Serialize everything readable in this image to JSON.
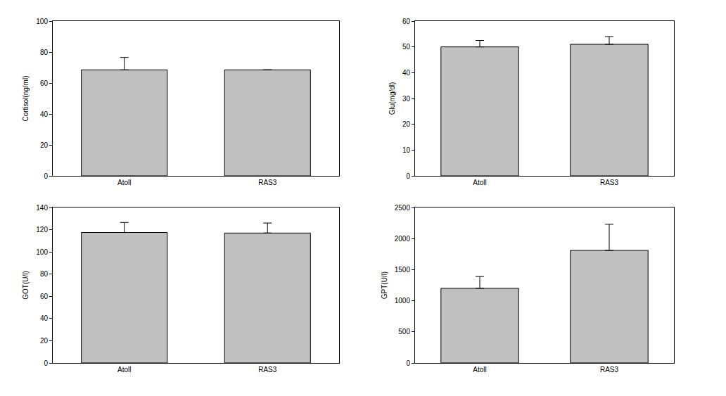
{
  "chart_data": [
    {
      "type": "bar",
      "categories": [
        "Atoll",
        "RAS3"
      ],
      "values": [
        68.5,
        68.5
      ],
      "errors": [
        8,
        0
      ],
      "y_label": "Cortisol(ng/ml)",
      "color": "#c0c0c0",
      "ylim": [
        0,
        100
      ],
      "yticks": [
        0,
        20,
        40,
        60,
        80,
        100
      ],
      "grid": false
    },
    {
      "type": "bar",
      "categories": [
        "Atoll",
        "RAS3"
      ],
      "values": [
        50,
        51
      ],
      "errors": [
        2.5,
        3
      ],
      "y_label": "Glu(mg/dl)",
      "color": "#c0c0c0",
      "ylim": [
        0,
        60
      ],
      "yticks": [
        0,
        10,
        20,
        30,
        40,
        50,
        60
      ],
      "grid": false
    },
    {
      "type": "bar",
      "categories": [
        "Atoll",
        "RAS3"
      ],
      "values": [
        117.5,
        117
      ],
      "errors": [
        9,
        9
      ],
      "y_label": "GOT(U/l)",
      "color": "#c0c0c0",
      "ylim": [
        0,
        140
      ],
      "yticks": [
        0,
        20,
        40,
        60,
        80,
        100,
        120,
        140
      ],
      "grid": false
    },
    {
      "type": "bar",
      "categories": [
        "Atoll",
        "RAS3"
      ],
      "values": [
        1200,
        1810
      ],
      "errors": [
        190,
        420
      ],
      "y_label": "GPT(U/l)",
      "color": "#c0c0c0",
      "ylim": [
        0,
        2500
      ],
      "yticks": [
        0,
        500,
        1000,
        1500,
        2000,
        2500
      ],
      "grid": false
    }
  ]
}
